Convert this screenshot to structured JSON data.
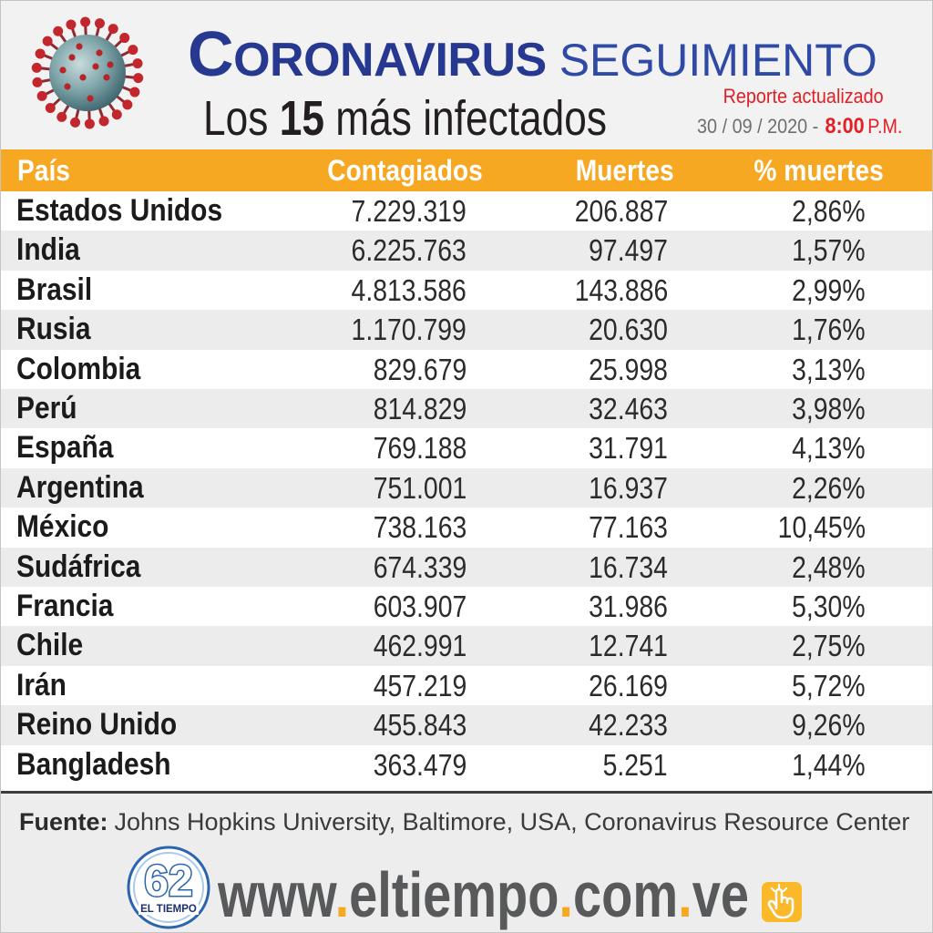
{
  "header": {
    "title_main": "CORONAVIRUS",
    "title_secondary": "SEGUIMIENTO",
    "subtitle": {
      "prefix": "Los",
      "number": "15",
      "suffix": "más infectados"
    },
    "report_label": "Reporte actualizado",
    "report_date": "30 / 09 / 2020 -",
    "report_time": "8:00",
    "report_period": "P.M."
  },
  "chart_data": {
    "type": "table",
    "columns": [
      "País",
      "Contagiados",
      "Muertes",
      "% muertes"
    ],
    "rows": [
      [
        "Estados Unidos",
        "7.229.319",
        "206.887",
        "2,86%"
      ],
      [
        "India",
        "6.225.763",
        "97.497",
        "1,57%"
      ],
      [
        "Brasil",
        "4.813.586",
        "143.886",
        "2,99%"
      ],
      [
        "Rusia",
        "1.170.799",
        "20.630",
        "1,76%"
      ],
      [
        "Colombia",
        "829.679",
        "25.998",
        "3,13%"
      ],
      [
        "Perú",
        "814.829",
        "32.463",
        "3,98%"
      ],
      [
        "España",
        "769.188",
        "31.791",
        "4,13%"
      ],
      [
        "Argentina",
        "751.001",
        "16.937",
        "2,26%"
      ],
      [
        "México",
        "738.163",
        "77.163",
        "10,45%"
      ],
      [
        "Sudáfrica",
        "674.339",
        "16.734",
        "2,48%"
      ],
      [
        "Francia",
        "603.907",
        "31.986",
        "5,30%"
      ],
      [
        "Chile",
        "462.991",
        "12.741",
        "2,75%"
      ],
      [
        "Irán",
        "457.219",
        "26.169",
        "5,72%"
      ],
      [
        "Reino Unido",
        "455.843",
        "42.233",
        "9,26%"
      ],
      [
        "Bangladesh",
        "363.479",
        "5.251",
        "1,44%"
      ]
    ]
  },
  "footer": {
    "source_label": "Fuente:",
    "source_text": "Johns Hopkins University, Baltimore, USA, Coronavirus Resource Center",
    "website": "www.eltiempo.com.ve"
  },
  "logo": {
    "number": "62",
    "name": "EL TIEMPO"
  },
  "icons": {
    "virus": "virus-icon",
    "logo": "el-tiempo-logo",
    "click": "hand-pointer-icon"
  },
  "colors": {
    "accent": "#f7a823",
    "title_blue": "#26388f",
    "secondary_blue": "#2f4aa5",
    "report_red": "#e31e24",
    "website_gray": "#58595b"
  }
}
